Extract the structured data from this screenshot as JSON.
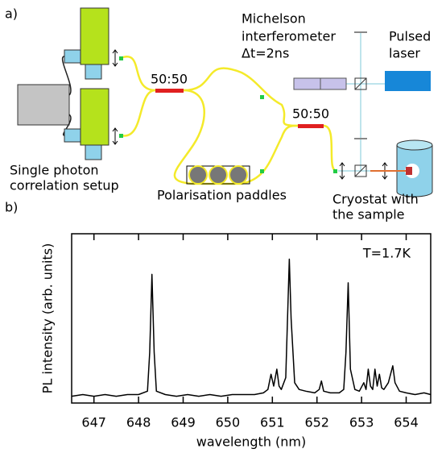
{
  "diagram": {
    "panel_label": "a)",
    "michelson": [
      "Michelson",
      "interferometer",
      "Δt=2ns"
    ],
    "laser": [
      "Pulsed",
      "laser"
    ],
    "splitter_1": "50:50",
    "splitter_2": "50:50",
    "correlation": [
      "Single photon",
      "correlation setup"
    ],
    "paddles": "Polarisation paddles",
    "cryostat": [
      "Cryostat with",
      "the sample"
    ]
  },
  "chart_data": {
    "type": "line",
    "panel_label": "b)",
    "annotation": "T=1.7K",
    "xlabel": "wavelength (nm)",
    "ylabel": "PL intensity (arb. units)",
    "xlim": [
      646.5,
      654.55
    ],
    "ylim": [
      0,
      1
    ],
    "xticks": [
      647,
      648,
      649,
      650,
      651,
      652,
      653,
      654
    ],
    "series": [
      {
        "color": "#000000",
        "x": [
          646.5,
          646.75,
          647.0,
          647.25,
          647.5,
          647.75,
          648.0,
          648.2,
          648.25,
          648.3,
          648.35,
          648.4,
          648.6,
          648.85,
          649.1,
          649.35,
          649.6,
          649.85,
          650.1,
          650.35,
          650.6,
          650.8,
          650.9,
          650.97,
          651.03,
          651.1,
          651.15,
          651.2,
          651.3,
          651.38,
          651.42,
          651.5,
          651.6,
          651.75,
          651.95,
          652.05,
          652.1,
          652.15,
          652.3,
          652.5,
          652.6,
          652.65,
          652.7,
          652.75,
          652.85,
          652.95,
          653.05,
          653.1,
          653.15,
          653.2,
          653.25,
          653.3,
          653.35,
          653.4,
          653.45,
          653.5,
          653.6,
          653.7,
          653.75,
          653.85,
          654.0,
          654.2,
          654.4,
          654.55
        ],
        "values": [
          0.04,
          0.05,
          0.04,
          0.05,
          0.04,
          0.05,
          0.05,
          0.07,
          0.3,
          0.76,
          0.3,
          0.07,
          0.05,
          0.04,
          0.05,
          0.04,
          0.05,
          0.04,
          0.05,
          0.05,
          0.05,
          0.06,
          0.08,
          0.17,
          0.1,
          0.2,
          0.1,
          0.08,
          0.15,
          0.85,
          0.5,
          0.12,
          0.08,
          0.07,
          0.06,
          0.08,
          0.13,
          0.07,
          0.06,
          0.06,
          0.08,
          0.3,
          0.71,
          0.2,
          0.08,
          0.07,
          0.12,
          0.08,
          0.2,
          0.1,
          0.08,
          0.2,
          0.1,
          0.17,
          0.09,
          0.08,
          0.12,
          0.22,
          0.12,
          0.07,
          0.06,
          0.05,
          0.06,
          0.05
        ]
      }
    ]
  }
}
